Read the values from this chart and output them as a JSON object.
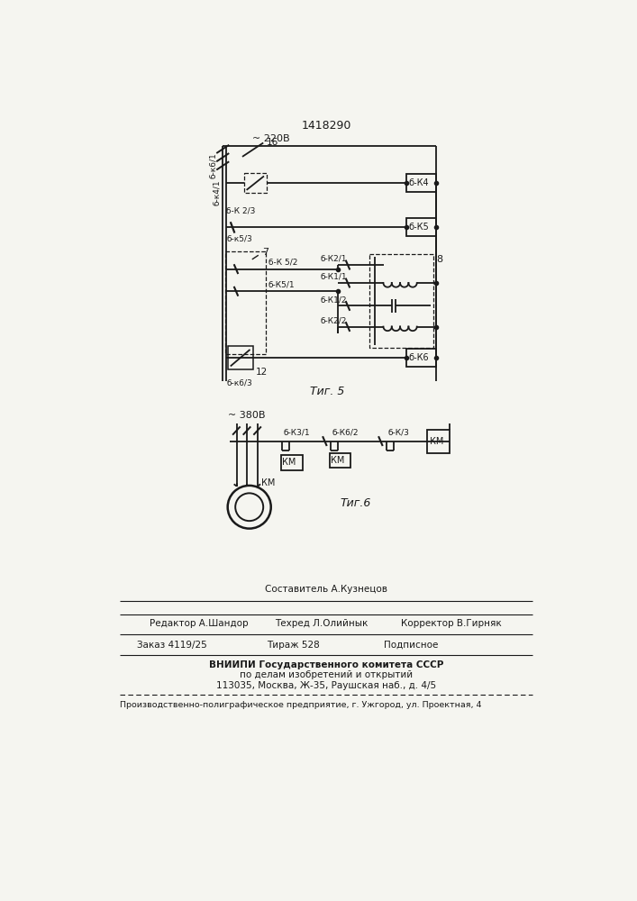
{
  "title": "1418290",
  "fig5_label": "Τиг. 5",
  "fig6_label": "Τиг.6",
  "voltage_220": "~ 220В",
  "voltage_380": "~ 380В",
  "label_16": "16",
  "label_7": "7",
  "label_8": "8",
  "label_12": "12",
  "label_b_k4": "б-К4",
  "label_b_k5": "б-К5",
  "label_b_k6": "б-К6",
  "label_b_k61": "б-к6/1",
  "label_b_k41": "б-к4/1",
  "label_b_k23": "б-К 2/3",
  "label_b_k53": "б-к5/3",
  "label_b_k52": "б-К 5/2",
  "label_b_k51": "б-К5/1",
  "label_b_k63": "б-к6/3",
  "label_b_k21": "б-К2/1",
  "label_b_k11": "б-К1/1",
  "label_b_k12": "б-К1/2",
  "label_b_k22": "б-К2/2",
  "label_b_k31": "б-К3/1",
  "label_b_k62": "б-К6/2",
  "label_b_k3": "б-К/3",
  "label_km": "КМ",
  "footer_sostavitel": "Составитель А.Кузнецов",
  "footer_editor": "Редактор А.Шандор",
  "footer_techred": "Техред Л.Олийнык",
  "footer_corrector": "Корректор В.Гирняк",
  "footer_order": "Заказ 4119/25",
  "footer_tirazh": "Тираж 528",
  "footer_podpisnoe": "Подписное",
  "footer_vniip1": "ВНИИПИ Государственного комитета СССР",
  "footer_vniip2": "по делам изобретений и открытий",
  "footer_vniip3": "113035, Москва, Ж-35, Раушская наб., д. 4/5",
  "footer_proizv": "Производственно-полиграфическое предприятие, г. Ужгород, ул. Проектная, 4",
  "bg_color": "#f5f5f0",
  "line_color": "#1a1a1a"
}
